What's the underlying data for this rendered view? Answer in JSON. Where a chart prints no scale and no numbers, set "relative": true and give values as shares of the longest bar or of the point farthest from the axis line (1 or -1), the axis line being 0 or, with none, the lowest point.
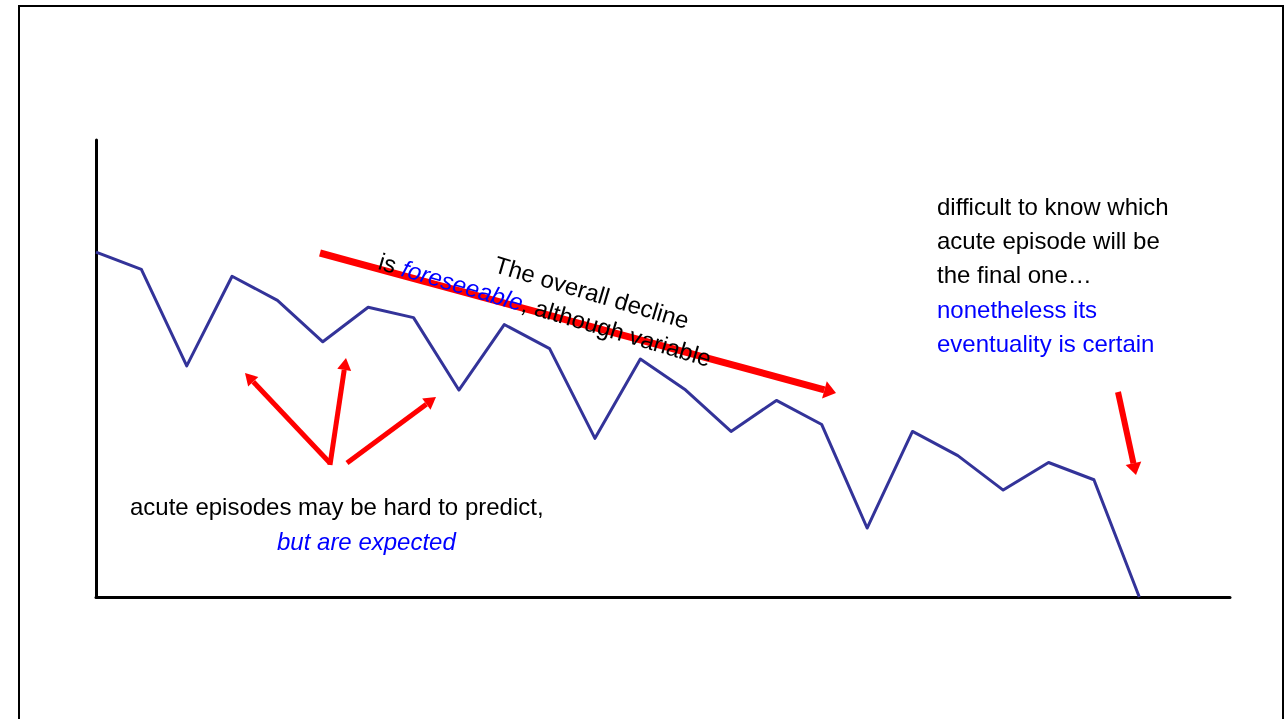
{
  "chart_data": {
    "type": "line",
    "relative": true,
    "color": "#333399",
    "marker": "none",
    "tick_labels": false,
    "categories": [
      null,
      null,
      null,
      null,
      null,
      null,
      null,
      null,
      null,
      null,
      null,
      null,
      null,
      null,
      null,
      null,
      null,
      null,
      null,
      null,
      null,
      null,
      null,
      null,
      null,
      null
    ],
    "values": [
      1.0,
      0.95,
      0.67,
      0.93,
      0.86,
      0.74,
      0.84,
      0.81,
      0.6,
      0.79,
      0.72,
      0.46,
      0.69,
      0.6,
      0.48,
      0.57,
      0.5,
      0.2,
      0.48,
      0.41,
      0.31,
      0.39,
      0.34,
      0,
      null,
      null
    ],
    "annotations": [
      "The overall decline",
      "is ",
      "foreseeable",
      ", although variable",
      "acute episodes may be hard to predict,",
      "but are expected",
      "difficult to know which",
      "acute episode will be",
      "the final one…",
      "nonetheless its",
      "eventuality is certain"
    ]
  }
}
